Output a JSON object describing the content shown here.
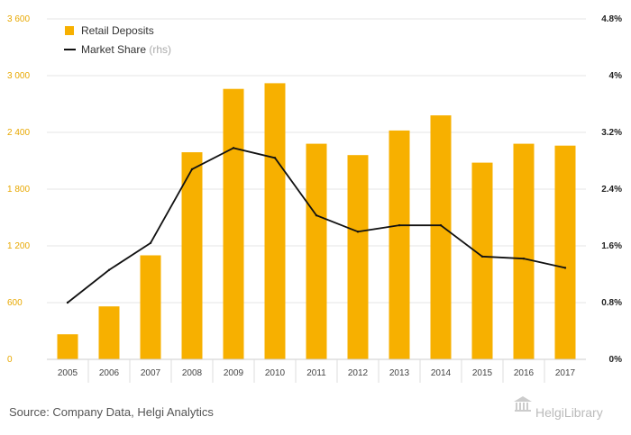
{
  "chart_data": {
    "type": "bar",
    "categories": [
      "2005",
      "2006",
      "2007",
      "2008",
      "2009",
      "2010",
      "2011",
      "2012",
      "2013",
      "2014",
      "2015",
      "2016",
      "2017"
    ],
    "series": [
      {
        "name": "Retail Deposits",
        "type": "bar",
        "axis": "left",
        "color": "#f7b000",
        "values": [
          265,
          560,
          1100,
          2190,
          2860,
          2920,
          2280,
          2160,
          2420,
          2580,
          2080,
          2280,
          2260
        ]
      },
      {
        "name": "Market Share",
        "name_suffix": "(rhs)",
        "type": "line",
        "axis": "right",
        "color": "#111111",
        "values": [
          0.8,
          1.26,
          1.64,
          2.68,
          2.98,
          2.84,
          2.03,
          1.8,
          1.89,
          1.89,
          1.45,
          1.42,
          1.29
        ]
      }
    ],
    "y_left": {
      "min": 0,
      "max": 3600,
      "ticks": [
        "0",
        "600",
        "1 200",
        "1 800",
        "2 400",
        "3 000",
        "3 600"
      ]
    },
    "y_right": {
      "min": 0,
      "max": 4.8,
      "ticks": [
        "0%",
        "0.8%",
        "1.6%",
        "2.4%",
        "3.2%",
        "4%",
        "4.8%"
      ]
    },
    "grid": true,
    "legend_position": "top-left"
  },
  "footer": {
    "source": "Source: Company Data, Helgi Analytics",
    "logo": "HelgiLibrary"
  }
}
